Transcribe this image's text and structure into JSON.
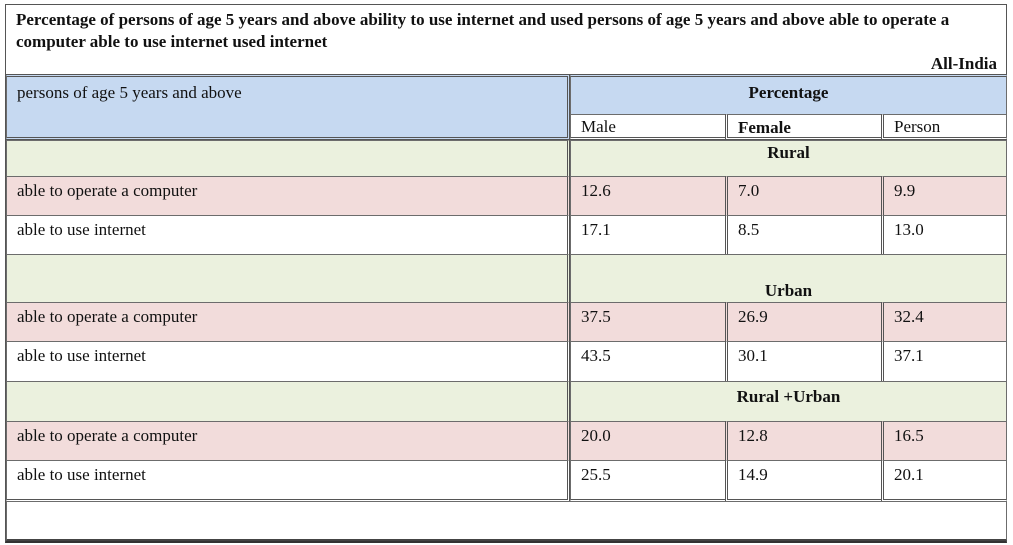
{
  "title": "Percentage of persons of age 5 years and above ability to use internet and used persons of age 5 years and above able to operate a computer able to use internet used internet",
  "region": "All-India",
  "header": {
    "row_label": "persons of age 5 years and above",
    "group_label": "Percentage",
    "columns": [
      "Male",
      "Female",
      "Person"
    ]
  },
  "sections": [
    {
      "name": "Rural",
      "rows": [
        {
          "label": "able to operate a computer",
          "values": [
            "12.6",
            "7.0",
            "9.9"
          ]
        },
        {
          "label": "able to use internet",
          "values": [
            "17.1",
            "8.5",
            "13.0"
          ]
        }
      ]
    },
    {
      "name": "Urban",
      "rows": [
        {
          "label": "able to operate a computer",
          "values": [
            "37.5",
            "26.9",
            "32.4"
          ]
        },
        {
          "label": "able to use internet",
          "values": [
            "43.5",
            "30.1",
            "37.1"
          ]
        }
      ]
    },
    {
      "name": "Rural +Urban",
      "rows": [
        {
          "label": "able to operate a computer",
          "values": [
            "20.0",
            "12.8",
            "16.5"
          ]
        },
        {
          "label": "able to use internet",
          "values": [
            "25.5",
            "14.9",
            "20.1"
          ]
        }
      ]
    }
  ],
  "colors": {
    "header": "#c6d9f1",
    "section": "#ebf1de",
    "highlight_row": "#f2dcdb",
    "plain_row": "#ffffff"
  }
}
